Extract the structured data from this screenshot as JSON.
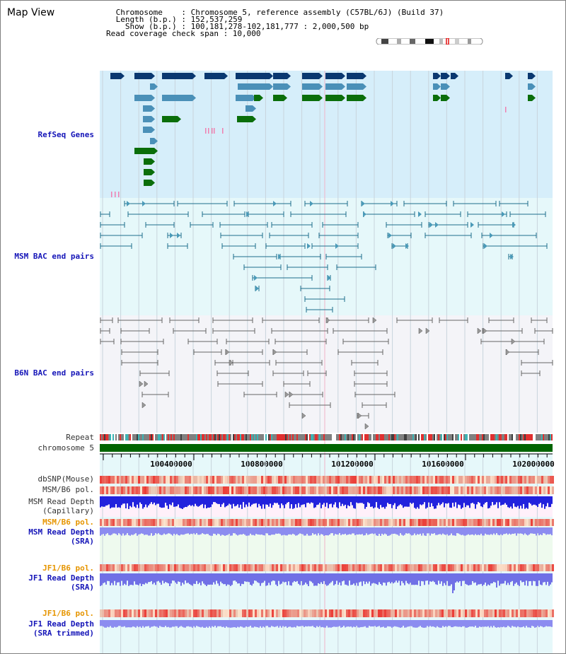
{
  "header": {
    "title": "Map View",
    "chromosome_line": " Chromosome    : Chromosome 5, reference assembly (C57BL/6J) (Build 37)",
    "length_line": " Length (b.p.) : 152,537,259",
    "show_line": "   Show (b.p.) : 100,181,278-102,181,777 : 2,000,500 bp",
    "coverage_line": "Read coverage check span : 10,000"
  },
  "tracks": {
    "refseq_genes": "RefSeq Genes",
    "msm_bac": "MSM BAC end pairs",
    "b6n_bac": "B6N BAC end pairs",
    "repeat": "Repeat",
    "chromosome": "chromosome 5",
    "dbsnp": "dbSNP(Mouse)",
    "msm_b6_pol": "MSM/B6 pol.",
    "msm_depth_cap_1": "MSM Read Depth",
    "msm_depth_cap_2": "(Capillary)",
    "msm_b6_pol_2": "MSM/B6 pol.",
    "msm_depth_sra_1": "MSM Read Depth",
    "msm_depth_sra_2": "(SRA)",
    "jf1_pol": "JF1/B6 pol.",
    "jf1_depth_1": "JF1 Read Depth",
    "jf1_depth_2": "(SRA)",
    "jf1_pol_2": "JF1/B6 pol.",
    "jf1_trim_1": "JF1 Read Depth",
    "jf1_trim_2": "(SRA trimmed)"
  },
  "axis": {
    "ticks": [
      "100400000",
      "100800000",
      "101200000",
      "101600000",
      "102000000"
    ]
  },
  "colors": {
    "refseq_bg": "#d6eefa",
    "msm_bg": "#e6f8fa",
    "b6n_bg": "#f4f4f8",
    "lower_bg": "#e6f8fa",
    "chrom_bar": "#006400",
    "gene_dark": "#0a3870",
    "gene_mid": "#4a90b8",
    "gene_green": "#0a6e0a",
    "msm_line": "#1e6e8c",
    "b6n_line": "#666666",
    "depth_blue": "#2222dd",
    "depth_light": "#8c8cf0"
  }
}
